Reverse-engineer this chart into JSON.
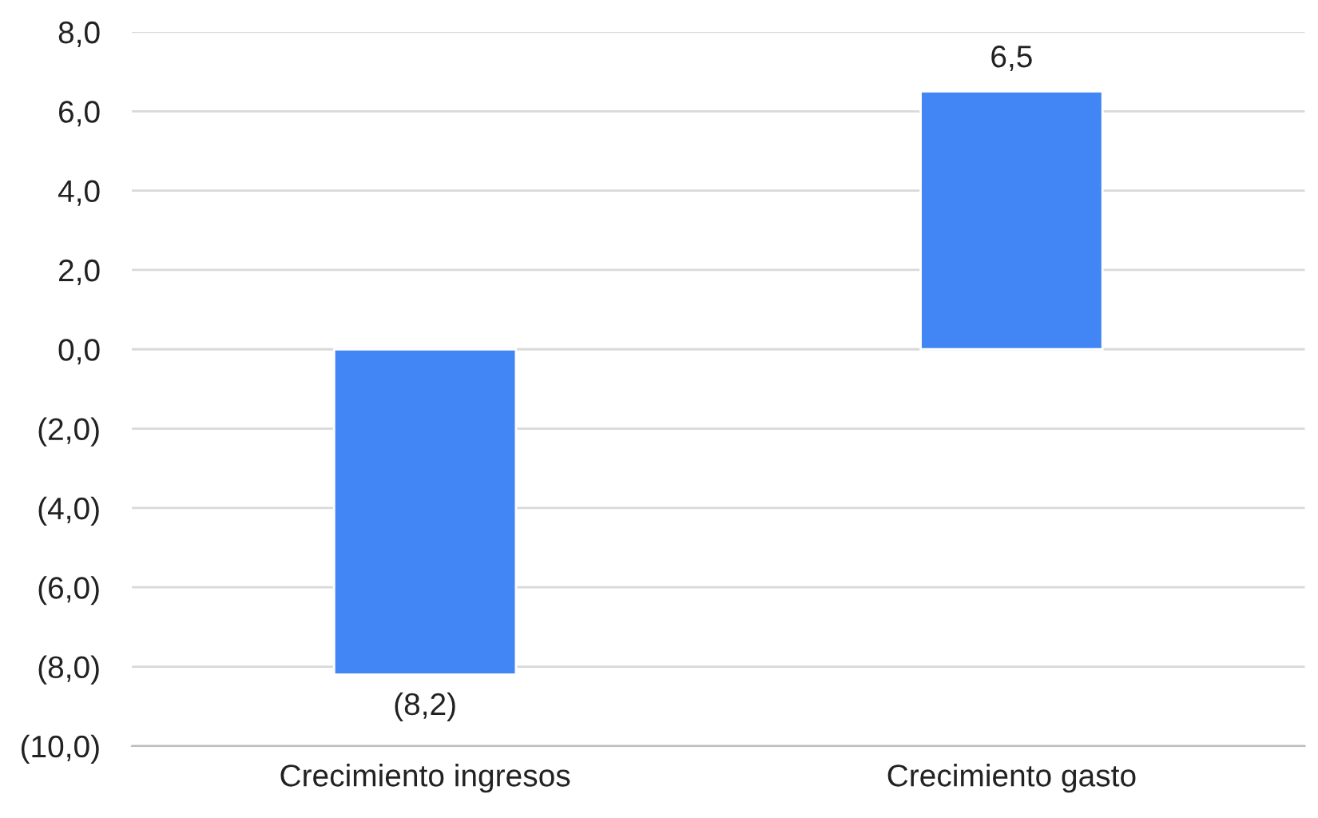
{
  "chart_data": {
    "type": "bar",
    "categories": [
      "Crecimiento ingresos",
      "Crecimiento gasto"
    ],
    "values": [
      -8.2,
      6.5
    ],
    "value_labels": [
      "(8,2)",
      "6,5"
    ],
    "color": "#4285f4",
    "ylim": [
      -10,
      8
    ],
    "yticks": [
      {
        "value": -10,
        "label": "(10,0)"
      },
      {
        "value": -8,
        "label": "(8,0)"
      },
      {
        "value": -6,
        "label": "(6,0)"
      },
      {
        "value": -4,
        "label": "(4,0)"
      },
      {
        "value": -2,
        "label": "(2,0)"
      },
      {
        "value": 0,
        "label": "0,0"
      },
      {
        "value": 2,
        "label": "2,0"
      },
      {
        "value": 4,
        "label": "4,0"
      },
      {
        "value": 6,
        "label": "6,0"
      },
      {
        "value": 8,
        "label": "8,0"
      }
    ],
    "grid": "y"
  }
}
